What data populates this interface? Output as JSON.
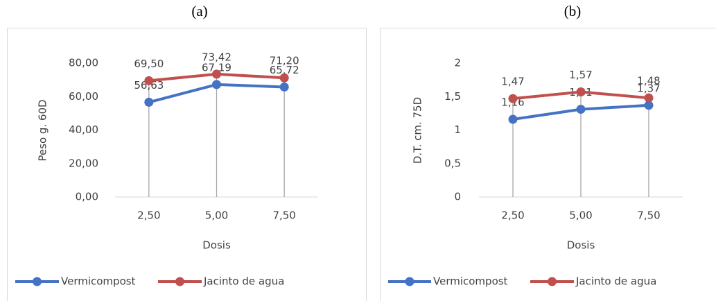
{
  "chart_data": [
    {
      "type": "line",
      "title": "(a)",
      "y_label": "Peso g. 60D",
      "x_label": "Dosis",
      "categories": [
        "2,50",
        "5,00",
        "7,50"
      ],
      "series": [
        {
          "name": "Vermicompost",
          "color": "#4472c4",
          "values": [
            56.63,
            67.19,
            65.72
          ],
          "value_labels": [
            "56,63",
            "67,19",
            "65,72"
          ]
        },
        {
          "name": "Jacinto de agua",
          "color": "#c0504d",
          "values": [
            69.5,
            73.42,
            71.2
          ],
          "value_labels": [
            "69,50",
            "73,42",
            "71,20"
          ]
        }
      ],
      "ylim": [
        0,
        80
      ],
      "yticks": [
        {
          "value": 0,
          "label": "0,00"
        },
        {
          "value": 20,
          "label": "20,00"
        },
        {
          "value": 40,
          "label": "40,00"
        },
        {
          "value": 60,
          "label": "60,00"
        },
        {
          "value": 80,
          "label": "80,00"
        }
      ],
      "grid": false,
      "legend": "bottom"
    },
    {
      "type": "line",
      "title": "(b)",
      "y_label": "D.T. cm. 75D",
      "x_label": "Dosis",
      "categories": [
        "2,50",
        "5,00",
        "7,50"
      ],
      "series": [
        {
          "name": "Vermicompost",
          "color": "#4472c4",
          "values": [
            1.16,
            1.31,
            1.37
          ],
          "value_labels": [
            "1,16",
            "1,31",
            "1,37"
          ]
        },
        {
          "name": "Jacinto de agua",
          "color": "#c0504d",
          "values": [
            1.47,
            1.57,
            1.48
          ],
          "value_labels": [
            "1,47",
            "1,57",
            "1,48"
          ]
        }
      ],
      "ylim": [
        0,
        2
      ],
      "yticks": [
        0,
        {
          "value": 0.5,
          "label": "0,5"
        },
        1,
        {
          "value": 1.5,
          "label": "1,5"
        },
        2
      ],
      "grid": false,
      "legend": "bottom"
    }
  ]
}
